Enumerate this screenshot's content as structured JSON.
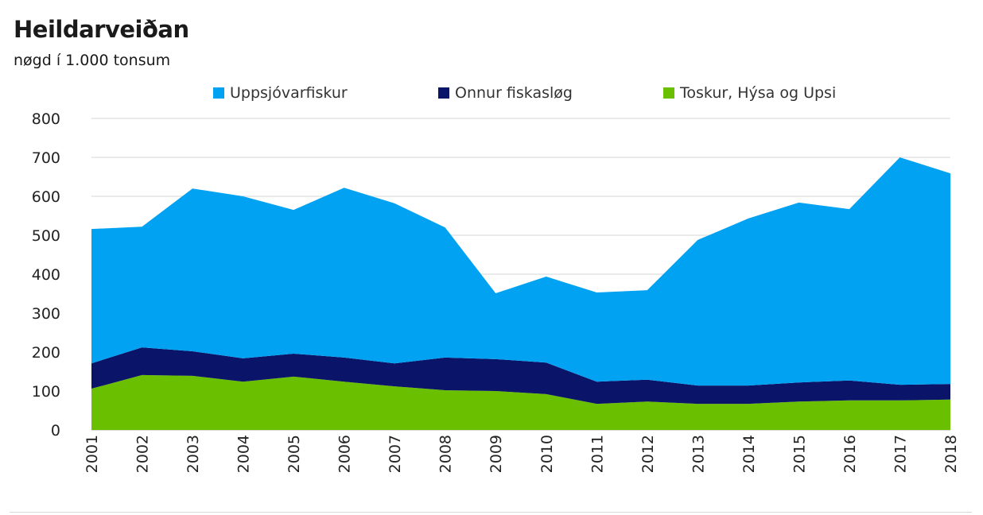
{
  "title": "Heildarveiðan",
  "subtitle": "nøgd í 1.000 tonsum",
  "chart_data": {
    "type": "area",
    "stacked": true,
    "title": "Heildarveiðan",
    "subtitle": "nøgd í 1.000 tonsum",
    "xlabel": "",
    "ylabel": "",
    "ylim": [
      0,
      800
    ],
    "yticks": [
      0,
      100,
      200,
      300,
      400,
      500,
      600,
      700,
      800
    ],
    "grid": true,
    "legend_position": "top",
    "categories": [
      "2001",
      "2002",
      "2003",
      "2004",
      "2005",
      "2006",
      "2007",
      "2008",
      "2009",
      "2010",
      "2011",
      "2012",
      "2013",
      "2014",
      "2015",
      "2016",
      "2017",
      "2018"
    ],
    "series": [
      {
        "name": "Toskur, Hýsa og Upsi",
        "color": "#6abf00",
        "values": [
          106,
          141,
          139,
          124,
          137,
          124,
          112,
          102,
          100,
          92,
          67,
          73,
          67,
          67,
          73,
          76,
          76,
          78
        ]
      },
      {
        "name": "Onnur fiskasløg",
        "color": "#0a1468",
        "values": [
          65,
          71,
          63,
          60,
          59,
          62,
          59,
          84,
          82,
          81,
          57,
          56,
          47,
          47,
          49,
          51,
          40,
          40
        ]
      },
      {
        "name": "Uppsjóvarfiskur",
        "color": "#02a2f2",
        "values": [
          345,
          310,
          418,
          416,
          369,
          436,
          411,
          334,
          169,
          221,
          229,
          230,
          374,
          429,
          462,
          440,
          584,
          541
        ]
      }
    ]
  }
}
